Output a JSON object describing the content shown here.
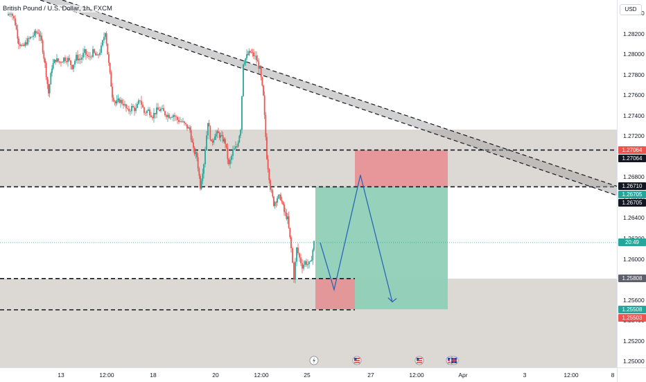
{
  "header": {
    "title": "British Pound / U.S. Dollar, 1h, FXCM",
    "currency": "USD"
  },
  "colors": {
    "up": "#26a69a",
    "down": "#ef5350",
    "zone": "#d6d2cc",
    "profit": "#8fcfb7",
    "loss": "#e79497",
    "arrow": "#2a66b8",
    "price_line": "#26a69a"
  },
  "price_axis_ticks": [
    "1.28400",
    "1.28200",
    "1.28000",
    "1.27800",
    "1.27600",
    "1.27400",
    "1.27200",
    "1.27000",
    "1.26800",
    "1.26600",
    "1.26400",
    "1.26200",
    "1.26000",
    "1.25800",
    "1.25600",
    "1.25400",
    "1.25200",
    "1.25000"
  ],
  "time_axis_ticks": [
    {
      "label": "13",
      "t": 88
    },
    {
      "label": "12:00",
      "t": 154
    },
    {
      "label": "18",
      "t": 221
    },
    {
      "label": "20",
      "t": 311
    },
    {
      "label": "12:00",
      "t": 377
    },
    {
      "label": "25",
      "t": 443
    },
    {
      "label": "27",
      "t": 535
    },
    {
      "label": "12:00",
      "t": 601
    },
    {
      "label": "Apr",
      "t": 668
    },
    {
      "label": "3",
      "t": 757
    },
    {
      "label": "12:00",
      "t": 824
    },
    {
      "label": "8",
      "t": 890
    }
  ],
  "price_tags": [
    {
      "label": "1.27064",
      "price": 1.27064,
      "color": "#ef5350"
    },
    {
      "label": "1.27064",
      "price": 1.27064,
      "color": "#131722",
      "offset": 13
    },
    {
      "label": "1.26710",
      "price": 1.2671,
      "color": "#131722"
    },
    {
      "label": "1.26705",
      "price": 1.26705,
      "color": "#26a69a",
      "offset": 13
    },
    {
      "label": "1.26705",
      "price": 1.26705,
      "color": "#131722",
      "offset": 26
    },
    {
      "label": "20:49",
      "price": 1.2616,
      "color": "#26a69a"
    },
    {
      "label": "1.25808",
      "price": 1.25808,
      "color": "#5d606b"
    },
    {
      "label": "1.25508",
      "price": 1.25508,
      "color": "#26a69a"
    },
    {
      "label": "1.25503",
      "price": 1.25503,
      "color": "#ef5350",
      "offset": 13
    }
  ],
  "chart_data": {
    "type": "candlestick",
    "title": "British Pound / U.S. Dollar, 1h, FXCM",
    "ylim": [
      1.2494,
      1.2853
    ],
    "y_ticks": [
      1.284,
      1.282,
      1.28,
      1.278,
      1.276,
      1.274,
      1.272,
      1.27,
      1.268,
      1.266,
      1.264,
      1.262,
      1.26,
      1.258,
      1.256,
      1.254,
      1.252,
      1.25
    ],
    "grid": false,
    "last_price": 1.2616,
    "price_path": [
      [
        10,
        1.2838
      ],
      [
        16,
        1.2842
      ],
      [
        22,
        1.283
      ],
      [
        27,
        1.2812
      ],
      [
        33,
        1.2806
      ],
      [
        38,
        1.2812
      ],
      [
        44,
        1.2816
      ],
      [
        50,
        1.282
      ],
      [
        55,
        1.2822
      ],
      [
        60,
        1.2812
      ],
      [
        65,
        1.279
      ],
      [
        70,
        1.2762
      ],
      [
        75,
        1.2788
      ],
      [
        80,
        1.2795
      ],
      [
        86,
        1.2792
      ],
      [
        92,
        1.2796
      ],
      [
        98,
        1.2795
      ],
      [
        104,
        1.2788
      ],
      [
        110,
        1.2797
      ],
      [
        116,
        1.2795
      ],
      [
        122,
        1.2802
      ],
      [
        128,
        1.2796
      ],
      [
        134,
        1.2802
      ],
      [
        140,
        1.2797
      ],
      [
        146,
        1.2806
      ],
      [
        152,
        1.2823
      ],
      [
        157,
        1.279
      ],
      [
        162,
        1.276
      ],
      [
        167,
        1.2752
      ],
      [
        172,
        1.2755
      ],
      [
        178,
        1.2752
      ],
      [
        184,
        1.2744
      ],
      [
        190,
        1.2748
      ],
      [
        196,
        1.2746
      ],
      [
        202,
        1.2756
      ],
      [
        208,
        1.2743
      ],
      [
        214,
        1.2745
      ],
      [
        220,
        1.274
      ],
      [
        226,
        1.2745
      ],
      [
        232,
        1.2746
      ],
      [
        238,
        1.2742
      ],
      [
        244,
        1.274
      ],
      [
        250,
        1.2741
      ],
      [
        256,
        1.2736
      ],
      [
        262,
        1.2734
      ],
      [
        268,
        1.273
      ],
      [
        274,
        1.2726
      ],
      [
        279,
        1.2706
      ],
      [
        284,
        1.27
      ],
      [
        289,
        1.2671
      ],
      [
        294,
        1.2694
      ],
      [
        300,
        1.2735
      ],
      [
        305,
        1.2712
      ],
      [
        310,
        1.2722
      ],
      [
        315,
        1.2722
      ],
      [
        320,
        1.2718
      ],
      [
        325,
        1.2714
      ],
      [
        330,
        1.2691
      ],
      [
        336,
        1.2705
      ],
      [
        342,
        1.271
      ],
      [
        347,
        1.2728
      ],
      [
        351,
        1.2792
      ],
      [
        356,
        1.2798
      ],
      [
        361,
        1.2802
      ],
      [
        366,
        1.2799
      ],
      [
        370,
        1.2795
      ],
      [
        375,
        1.2785
      ],
      [
        380,
        1.2758
      ],
      [
        385,
        1.27
      ],
      [
        390,
        1.267
      ],
      [
        395,
        1.2654
      ],
      [
        400,
        1.266
      ],
      [
        405,
        1.266
      ],
      [
        410,
        1.2646
      ],
      [
        415,
        1.2639
      ],
      [
        420,
        1.261
      ],
      [
        424,
        1.2582
      ],
      [
        428,
        1.261
      ],
      [
        432,
        1.2601
      ],
      [
        436,
        1.2593
      ],
      [
        440,
        1.2597
      ],
      [
        444,
        1.2595
      ],
      [
        448,
        1.2595
      ],
      [
        453,
        1.2616
      ]
    ],
    "bullish_segments_start_with_up": true,
    "zones": [
      {
        "name": "resistance-zone",
        "from": 1.27264,
        "to": 1.26705
      },
      {
        "name": "support-zone",
        "from": 1.25808,
        "to": 1.2494
      }
    ],
    "horizontal_levels": [
      1.27064,
      1.26705,
      1.25808,
      1.25503
    ],
    "trendline_channel": {
      "upper": [
        [
          90,
          1.2853
        ],
        [
          890,
          1.2671
        ]
      ],
      "lower": [
        [
          58,
          1.2853
        ],
        [
          890,
          1.2662
        ]
      ]
    },
    "position_boxes": [
      {
        "name": "loss-box-upper",
        "t_from": 512,
        "t_to": 646,
        "from": 1.27064,
        "to": 1.26705,
        "color": "loss"
      },
      {
        "name": "profit-box",
        "t_from": 455,
        "t_to": 646,
        "from": 1.26705,
        "to": 1.25508,
        "color": "profit"
      },
      {
        "name": "loss-box-lower",
        "t_from": 455,
        "t_to": 512,
        "from": 1.25808,
        "to": 1.25508,
        "color": "loss"
      }
    ],
    "projection_path": [
      [
        462,
        1.2616
      ],
      [
        482,
        1.257
      ],
      [
        520,
        1.2682
      ],
      [
        566,
        1.2558
      ]
    ],
    "event_markers": [
      {
        "t": 453,
        "icon": "lightning-icon"
      },
      {
        "t": 515,
        "icon": "us-flag-icon"
      },
      {
        "t": 605,
        "icon": "us-flag-icon"
      },
      {
        "t": 650,
        "icon": "us-flag-icon"
      },
      {
        "t": 655,
        "icon": "gb-flag-icon"
      }
    ]
  }
}
